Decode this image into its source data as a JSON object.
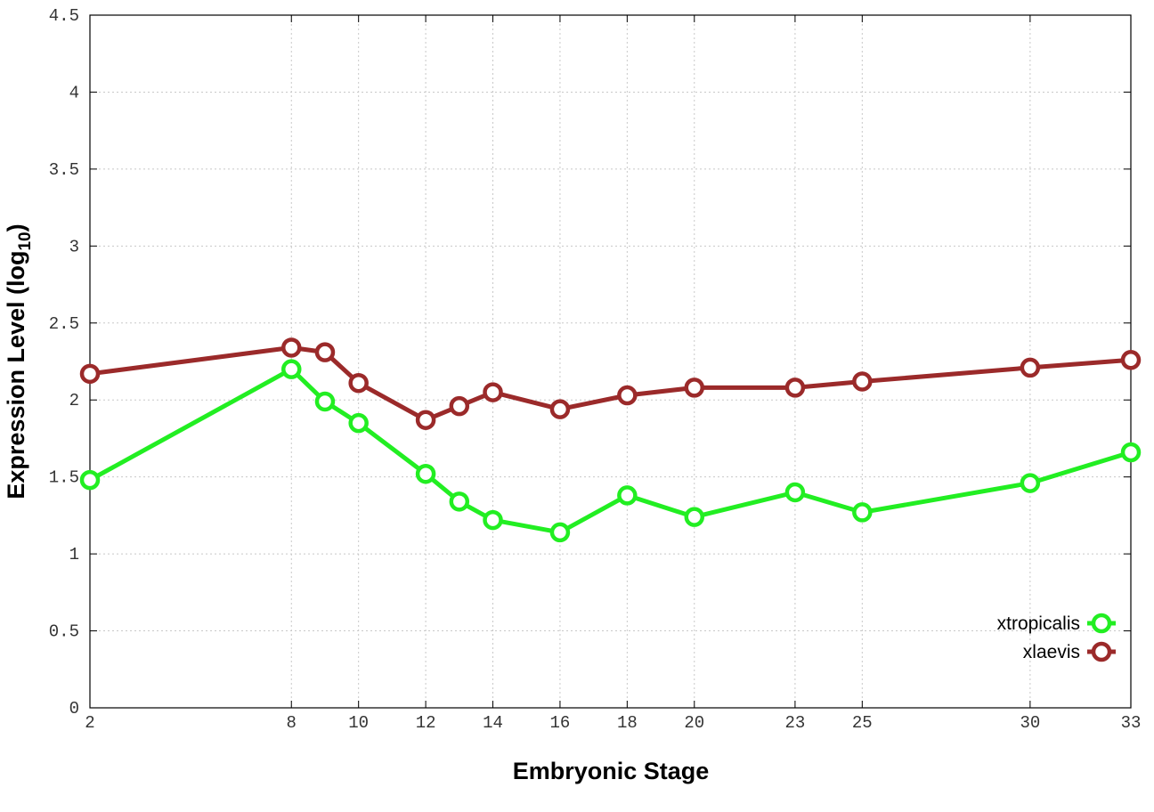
{
  "chart_data": {
    "type": "line",
    "xlabel": "Embryonic Stage",
    "ylabel": "Expression Level (log",
    "ylabel_subscript": "10",
    "ylabel_suffix": ")",
    "x": [
      2,
      8,
      9,
      10,
      12,
      13,
      14,
      16,
      18,
      20,
      23,
      25,
      30,
      33
    ],
    "xtick_values": [
      2,
      8,
      10,
      12,
      14,
      16,
      18,
      20,
      23,
      25,
      30,
      33
    ],
    "xtick_labels": [
      "2",
      "8",
      "10",
      "12",
      "14",
      "16",
      "18",
      "20",
      "23",
      "25",
      "30",
      "33"
    ],
    "ytick_values": [
      0,
      0.5,
      1,
      1.5,
      2,
      2.5,
      3,
      3.5,
      4,
      4.5
    ],
    "ytick_labels": [
      "0",
      "0.5",
      "1",
      "1.5",
      "2",
      "2.5",
      "3",
      "3.5",
      "4",
      "4.5"
    ],
    "xlim": [
      2,
      33
    ],
    "ylim": [
      0,
      4.5
    ],
    "grid": true,
    "legend_position": "bottom-right",
    "series": [
      {
        "name": "xtropicalis",
        "color": "#22ee22",
        "values": [
          1.48,
          2.2,
          1.99,
          1.85,
          1.52,
          1.34,
          1.22,
          1.14,
          1.38,
          1.24,
          1.4,
          1.27,
          1.46,
          1.66
        ]
      },
      {
        "name": "xlaevis",
        "color": "#9b2a2a",
        "values": [
          2.17,
          2.34,
          2.31,
          2.11,
          1.87,
          1.96,
          2.05,
          1.94,
          2.03,
          2.08,
          2.08,
          2.12,
          2.21,
          2.26
        ]
      }
    ]
  }
}
